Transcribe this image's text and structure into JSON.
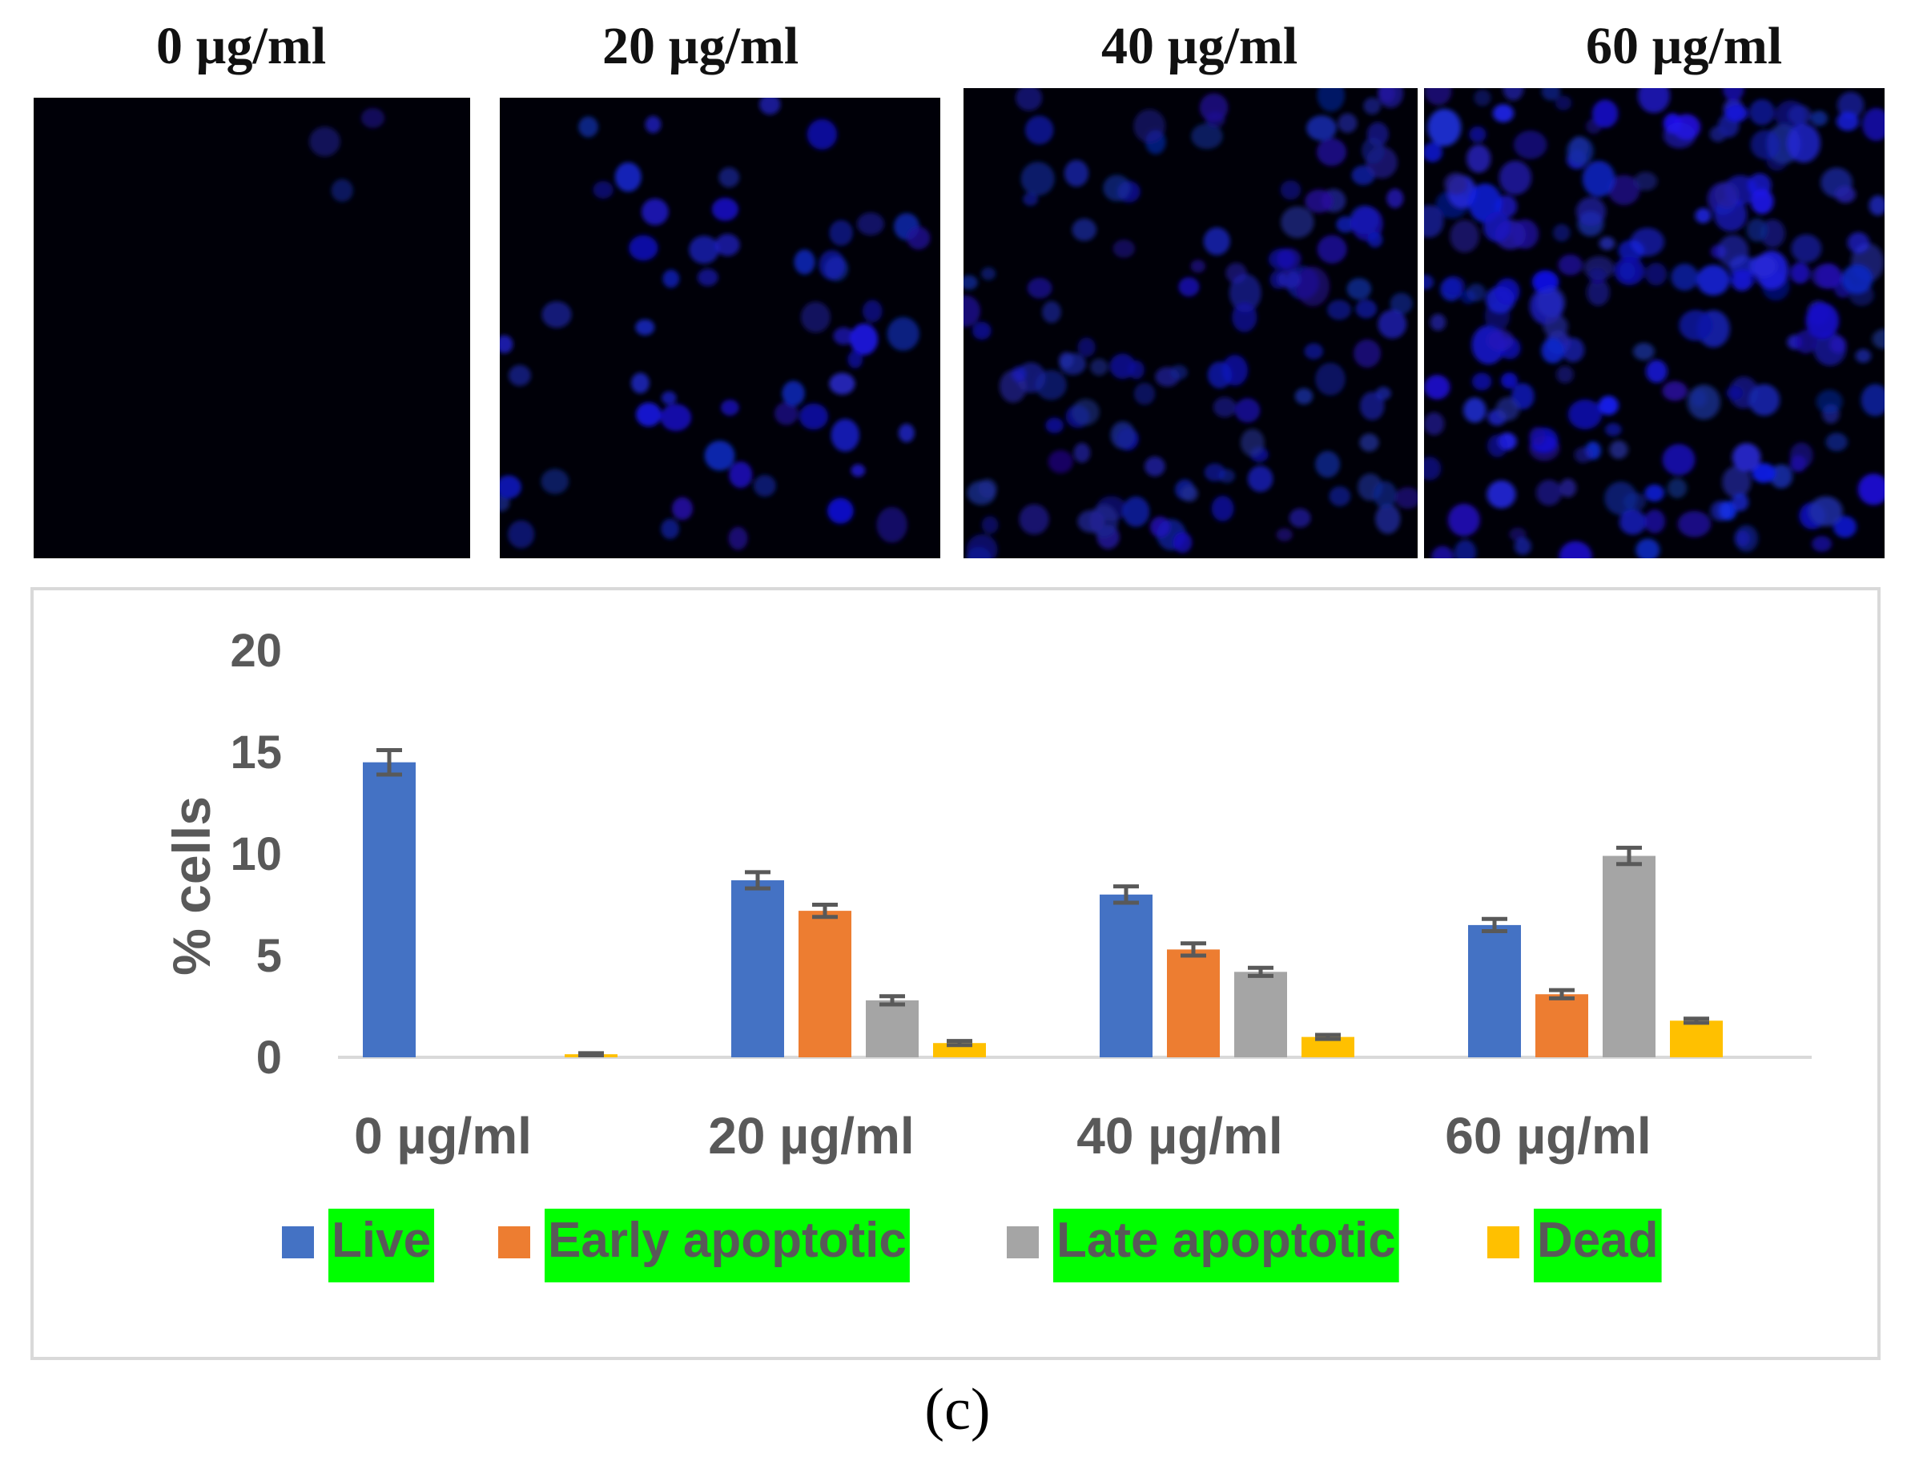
{
  "micrographs": {
    "titles": [
      "0 µg/ml",
      "20 µg/ml",
      "40 µg/ml",
      "60 µg/ml"
    ],
    "cell_density": [
      3,
      55,
      120,
      190
    ],
    "brightness": [
      0.25,
      0.9,
      0.55,
      0.9
    ]
  },
  "chart_data": {
    "type": "bar",
    "categories": [
      "0 µg/ml",
      "20 µg/ml",
      "40 µg/ml",
      "60 µg/ml"
    ],
    "series": [
      {
        "name": "Live",
        "color": "#4472c4",
        "values": [
          14.5,
          8.7,
          8.0,
          6.5
        ],
        "errors": [
          0.6,
          0.4,
          0.4,
          0.3
        ]
      },
      {
        "name": "Early apoptotic",
        "color": "#ed7d31",
        "values": [
          0,
          7.2,
          5.3,
          3.1
        ],
        "errors": [
          0,
          0.3,
          0.3,
          0.2
        ]
      },
      {
        "name": "Late apoptotic",
        "color": "#a5a5a5",
        "values": [
          0,
          2.8,
          4.2,
          9.9
        ],
        "errors": [
          0,
          0.2,
          0.2,
          0.4
        ]
      },
      {
        "name": "Dead",
        "color": "#ffc000",
        "values": [
          0.15,
          0.7,
          1.0,
          1.8
        ],
        "errors": [
          0.05,
          0.1,
          0.1,
          0.1
        ]
      }
    ],
    "ylabel": "% cells",
    "yticks": [
      0,
      5,
      10,
      15,
      20
    ],
    "ylim": [
      0,
      20
    ],
    "legend_position": "bottom",
    "legend_highlight": "#00ff00",
    "grid": false
  },
  "caption": "(c)"
}
